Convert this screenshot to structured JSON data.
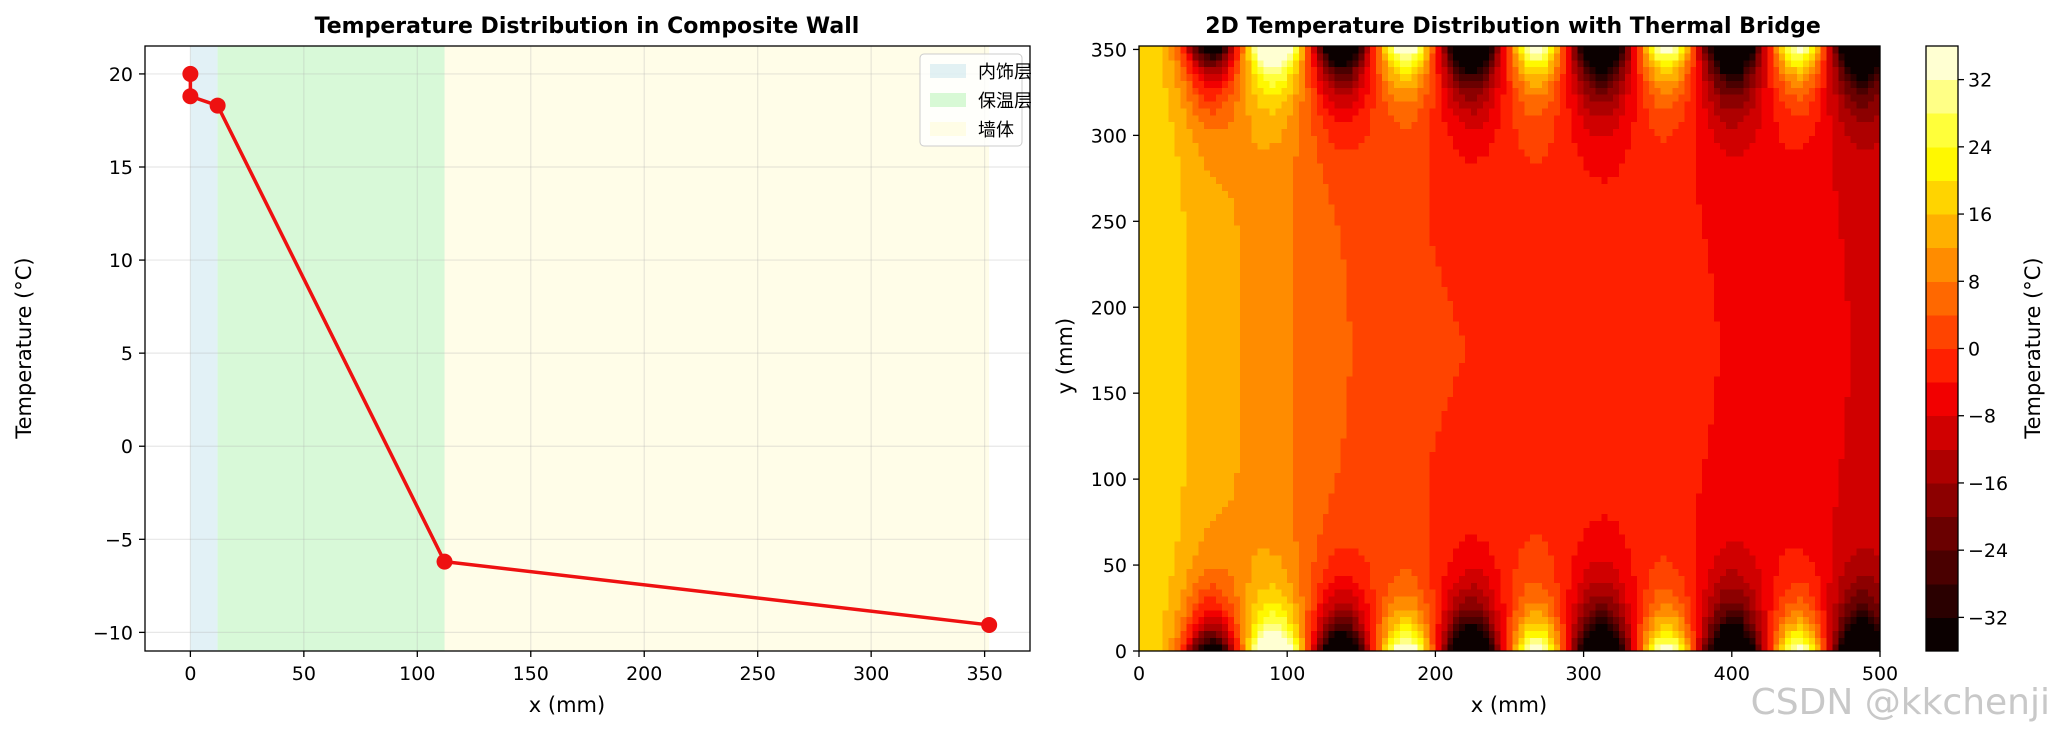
{
  "chart_data": [
    {
      "type": "line",
      "title": "Temperature Distribution in Composite Wall",
      "xlabel": "x (mm)",
      "ylabel": "Temperature (°C)",
      "xlim": [
        -20,
        370
      ],
      "ylim": [
        -11,
        21.5
      ],
      "xticks": [
        0,
        50,
        100,
        150,
        200,
        250,
        300,
        350
      ],
      "yticks": [
        -10,
        -5,
        0,
        5,
        10,
        15,
        20
      ],
      "grid": true,
      "series": [
        {
          "x": [
            0,
            0,
            12,
            112,
            352
          ],
          "y": [
            20.0,
            18.8,
            18.3,
            -6.2,
            -9.6
          ],
          "color": "#ee1111"
        }
      ],
      "bands": [
        {
          "from": 0,
          "to": 12,
          "color": "#add8e6",
          "label": "内饰层"
        },
        {
          "from": 12,
          "to": 112,
          "color": "#90ee90",
          "label": "保温层"
        },
        {
          "from": 112,
          "to": 352,
          "color": "#fffacd",
          "label": "墙体"
        }
      ],
      "legend_position": "upper right"
    },
    {
      "type": "heatmap",
      "title": "2D Temperature Distribution with Thermal Bridge",
      "xlabel": "x (mm)",
      "ylabel": "y (mm)",
      "xlim": [
        0,
        500
      ],
      "ylim": [
        0,
        352
      ],
      "xticks": [
        0,
        100,
        200,
        300,
        400,
        500
      ],
      "yticks": [
        0,
        50,
        100,
        150,
        200,
        250,
        300,
        350
      ],
      "colorbar_label": "Temperature (°C)",
      "colorbar_ticks": [
        "−32",
        "−24",
        "−16",
        "−8",
        "0",
        "8",
        "16",
        "24",
        "32"
      ],
      "colorbar_values": [
        -32,
        -24,
        -16,
        -8,
        0,
        8,
        16,
        24,
        32
      ],
      "clim": [
        -36,
        36
      ],
      "colormap": "hot",
      "hot_spot_x": [
        92,
        180,
        268,
        356,
        445
      ],
      "cold_spot_x": [
        48,
        136,
        224,
        312,
        400,
        488
      ]
    }
  ],
  "watermark": "CSDN @kkchenji"
}
